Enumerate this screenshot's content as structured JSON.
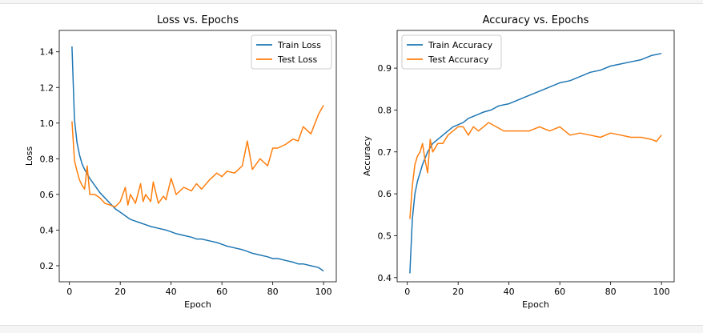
{
  "chart_data": [
    {
      "type": "line",
      "title": "Loss vs. Epochs",
      "xlabel": "Epoch",
      "ylabel": "Loss",
      "xlim": [
        -4,
        105
      ],
      "ylim": [
        0.11,
        1.52
      ],
      "xticks": [
        0,
        20,
        40,
        60,
        80,
        100
      ],
      "yticks": [
        0.2,
        0.4,
        0.6,
        0.8,
        1.0,
        1.2,
        1.4
      ],
      "ytick_labels": [
        "0.2",
        "0.4",
        "0.6",
        "0.8",
        "1.0",
        "1.2",
        "1.4"
      ],
      "legend_position": "top-right",
      "grid": false,
      "series": [
        {
          "name": "Train Loss",
          "color": "#1f77b4",
          "x": [
            1,
            2,
            3,
            4,
            5,
            6,
            8,
            10,
            12,
            14,
            16,
            18,
            20,
            22,
            24,
            26,
            28,
            30,
            32,
            35,
            38,
            40,
            42,
            45,
            48,
            50,
            52,
            55,
            58,
            60,
            62,
            65,
            68,
            70,
            72,
            75,
            78,
            80,
            82,
            85,
            88,
            90,
            92,
            95,
            98,
            100
          ],
          "y": [
            1.43,
            1.02,
            0.89,
            0.82,
            0.77,
            0.74,
            0.69,
            0.65,
            0.61,
            0.58,
            0.55,
            0.52,
            0.5,
            0.48,
            0.46,
            0.45,
            0.44,
            0.43,
            0.42,
            0.41,
            0.4,
            0.39,
            0.38,
            0.37,
            0.36,
            0.35,
            0.35,
            0.34,
            0.33,
            0.32,
            0.31,
            0.3,
            0.29,
            0.28,
            0.27,
            0.26,
            0.25,
            0.24,
            0.24,
            0.23,
            0.22,
            0.21,
            0.21,
            0.2,
            0.19,
            0.17
          ]
        },
        {
          "name": "Test Loss",
          "color": "#ff7f0e",
          "x": [
            1,
            2,
            3,
            4,
            5,
            6,
            7,
            8,
            9,
            10,
            12,
            14,
            16,
            18,
            20,
            22,
            23,
            24,
            26,
            28,
            29,
            30,
            32,
            33,
            35,
            37,
            38,
            40,
            42,
            45,
            48,
            50,
            52,
            55,
            58,
            60,
            62,
            65,
            68,
            70,
            72,
            75,
            78,
            80,
            82,
            85,
            88,
            90,
            92,
            95,
            98,
            100
          ],
          "y": [
            1.01,
            0.79,
            0.73,
            0.68,
            0.65,
            0.63,
            0.76,
            0.6,
            0.6,
            0.6,
            0.58,
            0.55,
            0.54,
            0.53,
            0.56,
            0.64,
            0.54,
            0.6,
            0.55,
            0.66,
            0.56,
            0.6,
            0.56,
            0.67,
            0.55,
            0.59,
            0.57,
            0.69,
            0.6,
            0.64,
            0.62,
            0.66,
            0.63,
            0.68,
            0.72,
            0.7,
            0.73,
            0.72,
            0.76,
            0.9,
            0.74,
            0.8,
            0.76,
            0.86,
            0.86,
            0.88,
            0.91,
            0.9,
            0.98,
            0.94,
            1.05,
            1.1
          ]
        }
      ]
    },
    {
      "type": "line",
      "title": "Accuracy vs. Epochs",
      "xlabel": "Epoch",
      "ylabel": "Accuracy",
      "xlim": [
        -4,
        105
      ],
      "ylim": [
        0.39,
        0.99
      ],
      "xticks": [
        0,
        20,
        40,
        60,
        80,
        100
      ],
      "yticks": [
        0.4,
        0.5,
        0.6,
        0.7,
        0.8,
        0.9
      ],
      "ytick_labels": [
        "0.4",
        "0.5",
        "0.6",
        "0.7",
        "0.8",
        "0.9"
      ],
      "legend_position": "top-left",
      "grid": false,
      "series": [
        {
          "name": "Train Accuracy",
          "color": "#1f77b4",
          "x": [
            1,
            2,
            3,
            4,
            5,
            6,
            8,
            10,
            12,
            14,
            16,
            18,
            20,
            22,
            24,
            26,
            28,
            30,
            33,
            36,
            40,
            44,
            48,
            52,
            56,
            60,
            64,
            68,
            72,
            76,
            80,
            84,
            88,
            92,
            96,
            100
          ],
          "y": [
            0.41,
            0.54,
            0.6,
            0.63,
            0.65,
            0.67,
            0.7,
            0.72,
            0.73,
            0.74,
            0.75,
            0.76,
            0.765,
            0.77,
            0.78,
            0.785,
            0.79,
            0.795,
            0.8,
            0.81,
            0.815,
            0.825,
            0.835,
            0.845,
            0.855,
            0.865,
            0.87,
            0.88,
            0.89,
            0.895,
            0.905,
            0.91,
            0.915,
            0.92,
            0.93,
            0.935
          ]
        },
        {
          "name": "Test Accuracy",
          "color": "#ff7f0e",
          "x": [
            1,
            2,
            3,
            4,
            5,
            6,
            7,
            8,
            9,
            10,
            12,
            14,
            16,
            18,
            20,
            22,
            24,
            26,
            28,
            30,
            32,
            35,
            38,
            40,
            44,
            48,
            52,
            56,
            60,
            64,
            68,
            72,
            76,
            80,
            84,
            88,
            92,
            96,
            98,
            100
          ],
          "y": [
            0.54,
            0.62,
            0.67,
            0.69,
            0.7,
            0.72,
            0.68,
            0.65,
            0.73,
            0.7,
            0.72,
            0.72,
            0.74,
            0.75,
            0.76,
            0.76,
            0.74,
            0.76,
            0.75,
            0.76,
            0.77,
            0.76,
            0.75,
            0.75,
            0.75,
            0.75,
            0.76,
            0.75,
            0.76,
            0.74,
            0.745,
            0.74,
            0.735,
            0.745,
            0.74,
            0.735,
            0.735,
            0.73,
            0.725,
            0.74
          ]
        }
      ]
    }
  ]
}
